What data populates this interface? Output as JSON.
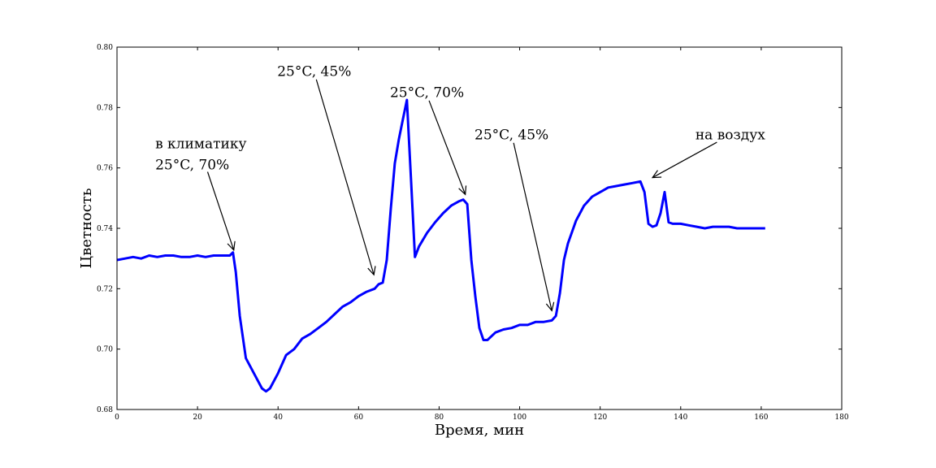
{
  "chart_data": {
    "type": "line",
    "xlabel": "Время, мин",
    "ylabel": "Цветность",
    "xlim": [
      0,
      180
    ],
    "ylim": [
      0.68,
      0.8
    ],
    "xticks": [
      0,
      20,
      40,
      60,
      80,
      100,
      120,
      140,
      160,
      180
    ],
    "yticks": [
      0.68,
      0.7,
      0.72,
      0.74,
      0.76,
      0.78,
      0.8
    ],
    "ytick_labels": [
      "0.68",
      "0.70",
      "0.72",
      "0.74",
      "0.76",
      "0.78",
      "0.80"
    ],
    "grid": false,
    "series_color": "#0000ff",
    "series": [
      {
        "x": [
          0,
          2,
          4,
          6,
          8,
          10,
          12,
          14,
          16,
          18,
          20,
          22,
          24,
          26,
          28,
          28.8,
          29.5,
          30.5,
          32,
          34,
          36,
          37,
          38,
          40,
          42,
          44,
          46,
          48,
          50,
          52,
          54,
          56,
          58,
          60,
          62,
          64,
          65,
          66,
          67,
          68,
          69,
          70,
          71,
          72,
          73,
          74,
          75,
          77,
          79,
          81,
          83,
          85,
          86,
          87,
          88,
          89,
          90,
          91,
          92,
          94,
          96,
          98,
          100,
          102,
          104,
          106,
          108,
          109,
          110,
          111,
          112,
          114,
          116,
          118,
          120,
          122,
          124,
          126,
          128,
          130,
          131,
          132,
          133,
          134,
          135,
          136,
          137,
          138,
          140,
          142,
          144,
          146,
          148,
          150,
          152,
          154,
          156,
          158,
          160,
          161
        ],
        "y": [
          0.7295,
          0.73,
          0.7305,
          0.73,
          0.731,
          0.7305,
          0.731,
          0.731,
          0.7305,
          0.7305,
          0.731,
          0.7305,
          0.731,
          0.731,
          0.731,
          0.732,
          0.7255,
          0.711,
          0.697,
          0.692,
          0.687,
          0.686,
          0.687,
          0.692,
          0.698,
          0.7,
          0.7035,
          0.705,
          0.707,
          0.709,
          0.7115,
          0.714,
          0.7155,
          0.7175,
          0.719,
          0.72,
          0.7215,
          0.722,
          0.7295,
          0.7465,
          0.7615,
          0.7695,
          0.776,
          0.7825,
          0.7565,
          0.7305,
          0.734,
          0.7385,
          0.742,
          0.745,
          0.7475,
          0.749,
          0.7495,
          0.748,
          0.7295,
          0.7175,
          0.707,
          0.703,
          0.703,
          0.7055,
          0.7065,
          0.707,
          0.708,
          0.708,
          0.709,
          0.709,
          0.7095,
          0.711,
          0.7185,
          0.7295,
          0.735,
          0.7425,
          0.7475,
          0.7505,
          0.752,
          0.7535,
          0.754,
          0.7545,
          0.755,
          0.7555,
          0.752,
          0.7415,
          0.7405,
          0.741,
          0.745,
          0.752,
          0.742,
          0.7415,
          0.7415,
          0.741,
          0.7405,
          0.74,
          0.7405,
          0.7405,
          0.7405,
          0.74,
          0.74,
          0.74,
          0.74,
          0.74
        ]
      }
    ],
    "annotations": [
      {
        "lines": [
          "в климатику",
          "25°C, 70%"
        ],
        "text_x": 9.5,
        "text_y": [
          0.7665,
          0.7595
        ],
        "text_anchor": "start",
        "arrow_from": [
          22.5,
          0.7587
        ],
        "arrow_to": [
          29,
          0.7328
        ]
      },
      {
        "lines": [
          "25°C, 45%"
        ],
        "text_x": 39.8,
        "text_y": [
          0.7905
        ],
        "text_anchor": "start",
        "arrow_from": [
          49.5,
          0.7893
        ],
        "arrow_to": [
          63.8,
          0.7246
        ]
      },
      {
        "lines": [
          "25°C, 70%"
        ],
        "text_x": 67.8,
        "text_y": [
          0.7835
        ],
        "text_anchor": "start",
        "arrow_from": [
          77.5,
          0.7823
        ],
        "arrow_to": [
          86.5,
          0.7512
        ]
      },
      {
        "lines": [
          "25°C, 45%"
        ],
        "text_x": 88.8,
        "text_y": [
          0.7695
        ],
        "text_anchor": "start",
        "arrow_from": [
          98.5,
          0.7683
        ],
        "arrow_to": [
          108,
          0.7127
        ]
      },
      {
        "lines": [
          "на воздух"
        ],
        "text_x": 161,
        "text_y": [
          0.7695
        ],
        "text_anchor": "end",
        "arrow_from": [
          149,
          0.7685
        ],
        "arrow_to": [
          133,
          0.7568
        ]
      }
    ]
  }
}
